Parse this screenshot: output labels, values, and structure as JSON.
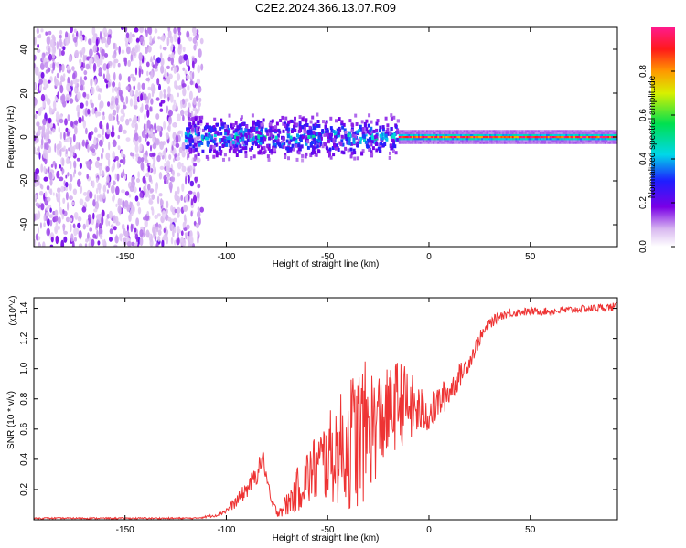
{
  "title": "C2E2.2024.366.13.07.R09",
  "chart_data": [
    {
      "type": "heatmap",
      "xlabel": "Height of straight line (km)",
      "ylabel": "Frequency (Hz)",
      "xlim": [
        -195,
        93
      ],
      "ylim": [
        -50,
        50
      ],
      "xticks": [
        -150,
        -100,
        -50,
        0,
        50
      ],
      "yticks": [
        -40,
        -20,
        0,
        20,
        40
      ],
      "colorbar": {
        "label": "Normalized spectral amplitude",
        "range": [
          0,
          1
        ],
        "ticks": [
          "0.0",
          "0.2",
          "0.4",
          "0.6",
          "0.8"
        ],
        "tick_values": [
          0.0,
          0.2,
          0.4,
          0.6,
          0.8
        ],
        "colormap": "rainbow (white-violet-blue-cyan-green-yellow-red-magenta)"
      },
      "regions": [
        {
          "x_range": [
            -195,
            -112
          ],
          "freq_range": [
            -50,
            50
          ],
          "amplitude": 0.15,
          "note": "broadband noise"
        },
        {
          "x_range": [
            -120,
            -15
          ],
          "freq_center": 0,
          "freq_halfwidth": 8,
          "amplitude": 0.4
        },
        {
          "x_range": [
            -15,
            93
          ],
          "freq_center": 0,
          "freq_halfwidth": 3,
          "amplitude": 0.9
        }
      ]
    },
    {
      "type": "line",
      "xlabel": "Height of straight line (km)",
      "ylabel": "SNR (10 * v/v)",
      "y_multiplier": "(x10^4)",
      "xlim": [
        -195,
        93
      ],
      "ylim": [
        0,
        1.47
      ],
      "xticks": [
        -150,
        -100,
        -50,
        0,
        50
      ],
      "yticks": [
        "0.2",
        "0.4",
        "0.6",
        "0.8",
        "1.0",
        "1.2",
        "1.4"
      ],
      "ytick_values": [
        0.2,
        0.4,
        0.6,
        0.8,
        1.0,
        1.2,
        1.4
      ],
      "color": "#ee3333",
      "series": [
        {
          "name": "SNR",
          "x": [
            -195,
            -150,
            -115,
            -105,
            -100,
            -95,
            -90,
            -85,
            -82,
            -78,
            -75,
            -70,
            -65,
            -60,
            -55,
            -50,
            -45,
            -40,
            -35,
            -30,
            -25,
            -20,
            -15,
            -10,
            -5,
            0,
            5,
            10,
            15,
            20,
            25,
            30,
            35,
            40,
            50,
            60,
            70,
            80,
            93
          ],
          "values": [
            0.01,
            0.01,
            0.01,
            0.03,
            0.06,
            0.12,
            0.2,
            0.3,
            0.42,
            0.12,
            0.05,
            0.1,
            0.2,
            0.28,
            0.35,
            0.4,
            0.45,
            0.5,
            0.55,
            0.6,
            0.65,
            0.7,
            0.78,
            0.75,
            0.72,
            0.7,
            0.78,
            0.85,
            0.95,
            1.05,
            1.2,
            1.3,
            1.35,
            1.37,
            1.38,
            1.38,
            1.39,
            1.4,
            1.41
          ],
          "fluctuation_amplitude": [
            0.005,
            0.005,
            0.005,
            0.01,
            0.02,
            0.04,
            0.06,
            0.07,
            0.06,
            0.04,
            0.03,
            0.08,
            0.15,
            0.2,
            0.25,
            0.3,
            0.35,
            0.45,
            0.5,
            0.45,
            0.35,
            0.3,
            0.3,
            0.25,
            0.18,
            0.12,
            0.12,
            0.1,
            0.08,
            0.06,
            0.05,
            0.04,
            0.03,
            0.03,
            0.025,
            0.025,
            0.025,
            0.025,
            0.03
          ]
        }
      ]
    }
  ]
}
